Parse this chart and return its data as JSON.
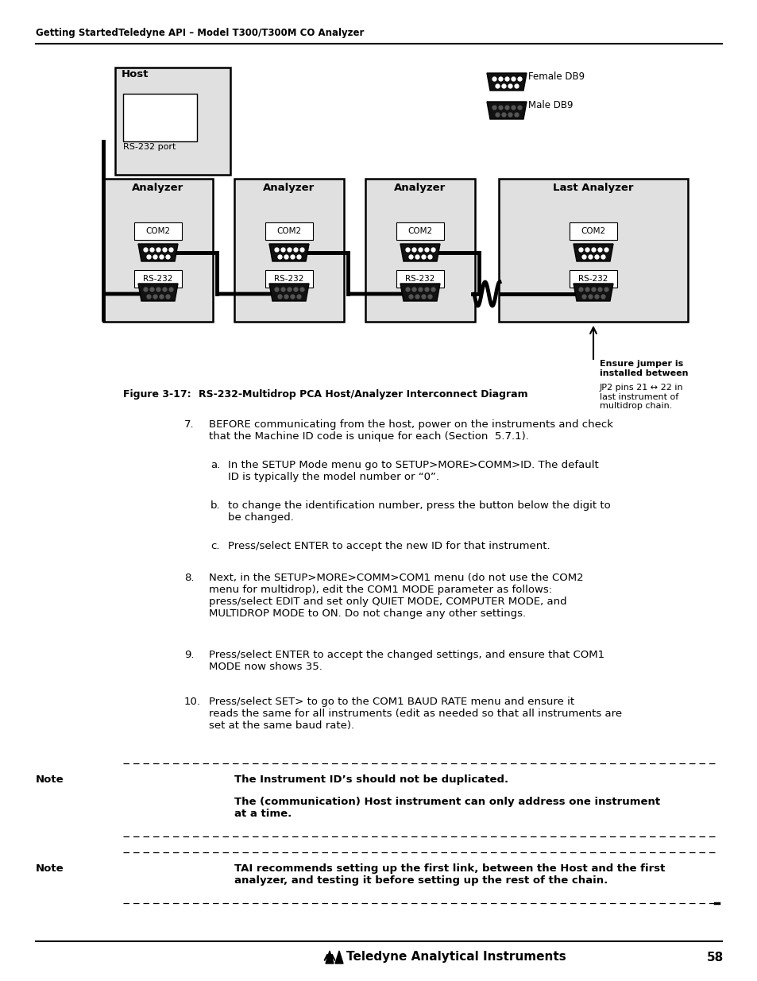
{
  "header_text": "Getting StartedTeledyne API – Model T300/T300M CO Analyzer",
  "page_number": "58",
  "figure_label": "Figure 3-17:",
  "figure_title": "RS-232-Multidrop PCA Host/Analyzer Interconnect Diagram",
  "legend_female": "Female DB9",
  "legend_male": "Male DB9",
  "host_label": "Host",
  "host_port_label": "RS-232 port",
  "com_label": "COM2",
  "rs232_label": "RS-232",
  "jumper_note_bold": "Ensure jumper is\ninstalled between",
  "jumper_note_normal": "JP2 pins 21 ↔ 22 in\nlast instrument of\nmultidrop chain.",
  "note1_label": "Note",
  "note1_bold1": "The Instrument ID’s should not be duplicated.",
  "note1_bold2": "The (communication) Host instrument can only address one instrument\nat a time.",
  "note2_label": "Note",
  "note2_bold": "TAI recommends setting up the first link, between the Host and the first\nanalyzer, and testing it before setting up the rest of the chain.",
  "item7": "BEFORE communicating from the host, power on the instruments and check\nthat the Machine ID code is unique for each (Section  5.7.1).",
  "item7a": "In the SETUP Mode menu go to SETUP>MORE>COMM>ID. The default\nID is typically the model number or “0”.",
  "item7b": "to change the identification number, press the button below the digit to\nbe changed.",
  "item7c": "Press/select ENTER to accept the new ID for that instrument.",
  "item8": "Next, in the SETUP>MORE>COMM>COM1 menu (do not use the COM2\nmenu for multidrop), edit the COM1 MODE parameter as follows:\npress/select EDIT and set only QUIET MODE, COMPUTER MODE, and\nMULTIDROP MODE to ON. Do not change any other settings.",
  "item9": "Press/select ENTER to accept the changed settings, and ensure that COM1\nMODE now shows 35.",
  "item10": "Press/select SET> to go to the COM1 BAUD RATE menu and ensure it\nreads the same for all instruments (edit as needed so that all instruments are\nset at the same baud rate).",
  "bg_color": "#ffffff",
  "box_fill": "#e0e0e0",
  "footer_teledyne": "Teledyne Analytical Instruments"
}
